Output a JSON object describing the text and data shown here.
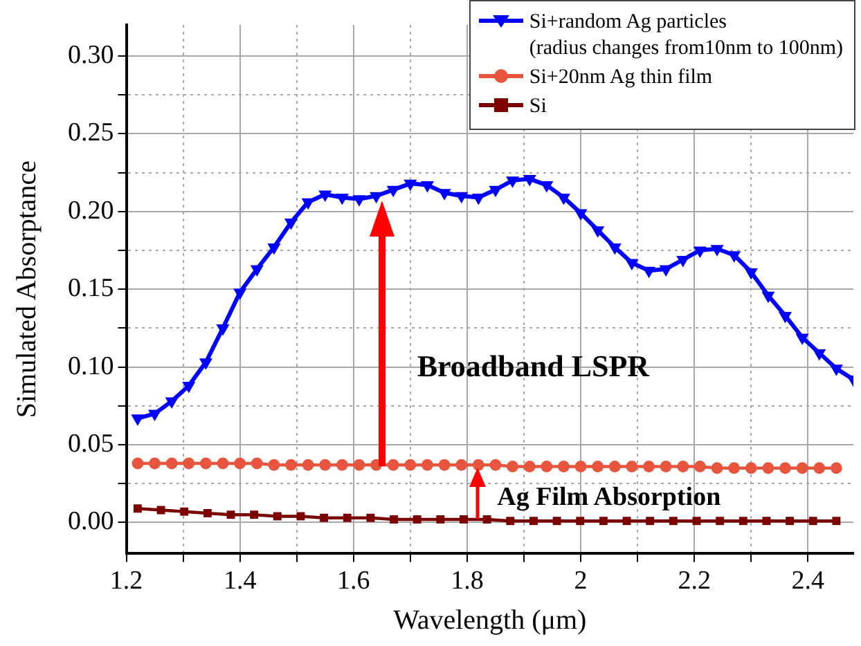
{
  "chart_data": {
    "type": "line",
    "xlabel": "Wavelength (μm)",
    "ylabel": "Simulated Absorptance",
    "xlim": [
      1.2,
      2.48
    ],
    "ylim": [
      -0.02,
      0.32
    ],
    "xticks": [
      1.2,
      {
        "value": 1.3,
        "label": null
      },
      1.4,
      {
        "value": 1.5,
        "label": null
      },
      1.6,
      {
        "value": 1.7,
        "label": null
      },
      1.8,
      {
        "value": 1.9,
        "label": null
      },
      2.0,
      {
        "value": 2.1,
        "label": null
      },
      2.2,
      {
        "value": 2.3,
        "label": null
      },
      2.4
    ],
    "yticks": [
      {
        "value": 0.0,
        "label": "0.00"
      },
      {
        "value": 0.025,
        "label": null
      },
      0.05,
      {
        "value": 0.075,
        "label": null
      },
      {
        "value": 0.1,
        "label": "0.10"
      },
      {
        "value": 0.125,
        "label": null
      },
      0.15,
      {
        "value": 0.175,
        "label": null
      },
      {
        "value": 0.2,
        "label": "0.20"
      },
      {
        "value": 0.225,
        "label": null
      },
      0.25,
      {
        "value": 0.275,
        "label": null
      },
      {
        "value": 0.3,
        "label": "0.30"
      }
    ],
    "grid": true,
    "legend": "top right",
    "series": [
      {
        "name": "Si+random Ag particles\n(radius changes from10nm to 100nm)",
        "color": "#0000ff",
        "marker": "triangle",
        "x": [
          1.22,
          1.25,
          1.28,
          1.31,
          1.34,
          1.37,
          1.4,
          1.43,
          1.46,
          1.49,
          1.52,
          1.55,
          1.58,
          1.61,
          1.64,
          1.67,
          1.7,
          1.73,
          1.76,
          1.79,
          1.82,
          1.85,
          1.88,
          1.91,
          1.94,
          1.97,
          2.0,
          2.03,
          2.06,
          2.09,
          2.12,
          2.15,
          2.18,
          2.21,
          2.24,
          2.27,
          2.3,
          2.33,
          2.36,
          2.39,
          2.42,
          2.45,
          2.48
        ],
        "values": [
          0.067,
          0.07,
          0.078,
          0.088,
          0.103,
          0.125,
          0.148,
          0.163,
          0.177,
          0.193,
          0.206,
          0.211,
          0.209,
          0.208,
          0.21,
          0.214,
          0.218,
          0.217,
          0.212,
          0.21,
          0.209,
          0.214,
          0.22,
          0.221,
          0.217,
          0.209,
          0.199,
          0.188,
          0.177,
          0.167,
          0.162,
          0.163,
          0.169,
          0.175,
          0.176,
          0.172,
          0.161,
          0.146,
          0.133,
          0.119,
          0.109,
          0.099,
          0.092
        ]
      },
      {
        "name": "Si+20nm Ag thin film",
        "color": "#e8553e",
        "marker": "circle",
        "x": [
          1.22,
          1.25,
          1.28,
          1.31,
          1.34,
          1.37,
          1.4,
          1.43,
          1.46,
          1.49,
          1.52,
          1.55,
          1.58,
          1.61,
          1.64,
          1.67,
          1.7,
          1.73,
          1.76,
          1.79,
          1.82,
          1.85,
          1.88,
          1.91,
          1.94,
          1.97,
          2.0,
          2.03,
          2.06,
          2.09,
          2.12,
          2.15,
          2.18,
          2.21,
          2.24,
          2.27,
          2.3,
          2.33,
          2.36,
          2.39,
          2.42,
          2.45
        ],
        "values": [
          0.038,
          0.038,
          0.038,
          0.038,
          0.038,
          0.038,
          0.038,
          0.038,
          0.037,
          0.037,
          0.037,
          0.037,
          0.037,
          0.037,
          0.037,
          0.037,
          0.037,
          0.037,
          0.037,
          0.037,
          0.037,
          0.037,
          0.036,
          0.036,
          0.036,
          0.036,
          0.036,
          0.036,
          0.036,
          0.036,
          0.036,
          0.036,
          0.036,
          0.036,
          0.035,
          0.035,
          0.035,
          0.035,
          0.035,
          0.035,
          0.035,
          0.035
        ]
      },
      {
        "name": "Si",
        "color": "#7b0000",
        "marker": "square",
        "x": [
          1.22,
          1.261,
          1.302,
          1.343,
          1.384,
          1.425,
          1.466,
          1.507,
          1.548,
          1.589,
          1.63,
          1.671,
          1.712,
          1.753,
          1.794,
          1.835,
          1.876,
          1.917,
          1.958,
          1.999,
          2.04,
          2.081,
          2.122,
          2.163,
          2.204,
          2.245,
          2.286,
          2.327,
          2.368,
          2.409,
          2.45
        ],
        "values": [
          0.009,
          0.008,
          0.007,
          0.006,
          0.005,
          0.005,
          0.004,
          0.004,
          0.003,
          0.003,
          0.003,
          0.002,
          0.002,
          0.002,
          0.002,
          0.002,
          0.001,
          0.001,
          0.001,
          0.001,
          0.001,
          0.001,
          0.001,
          0.001,
          0.001,
          0.001,
          0.001,
          0.001,
          0.001,
          0.001,
          0.001
        ]
      }
    ],
    "annotations": [
      "Broadband LSPR",
      "Ag Film Absorption"
    ]
  }
}
